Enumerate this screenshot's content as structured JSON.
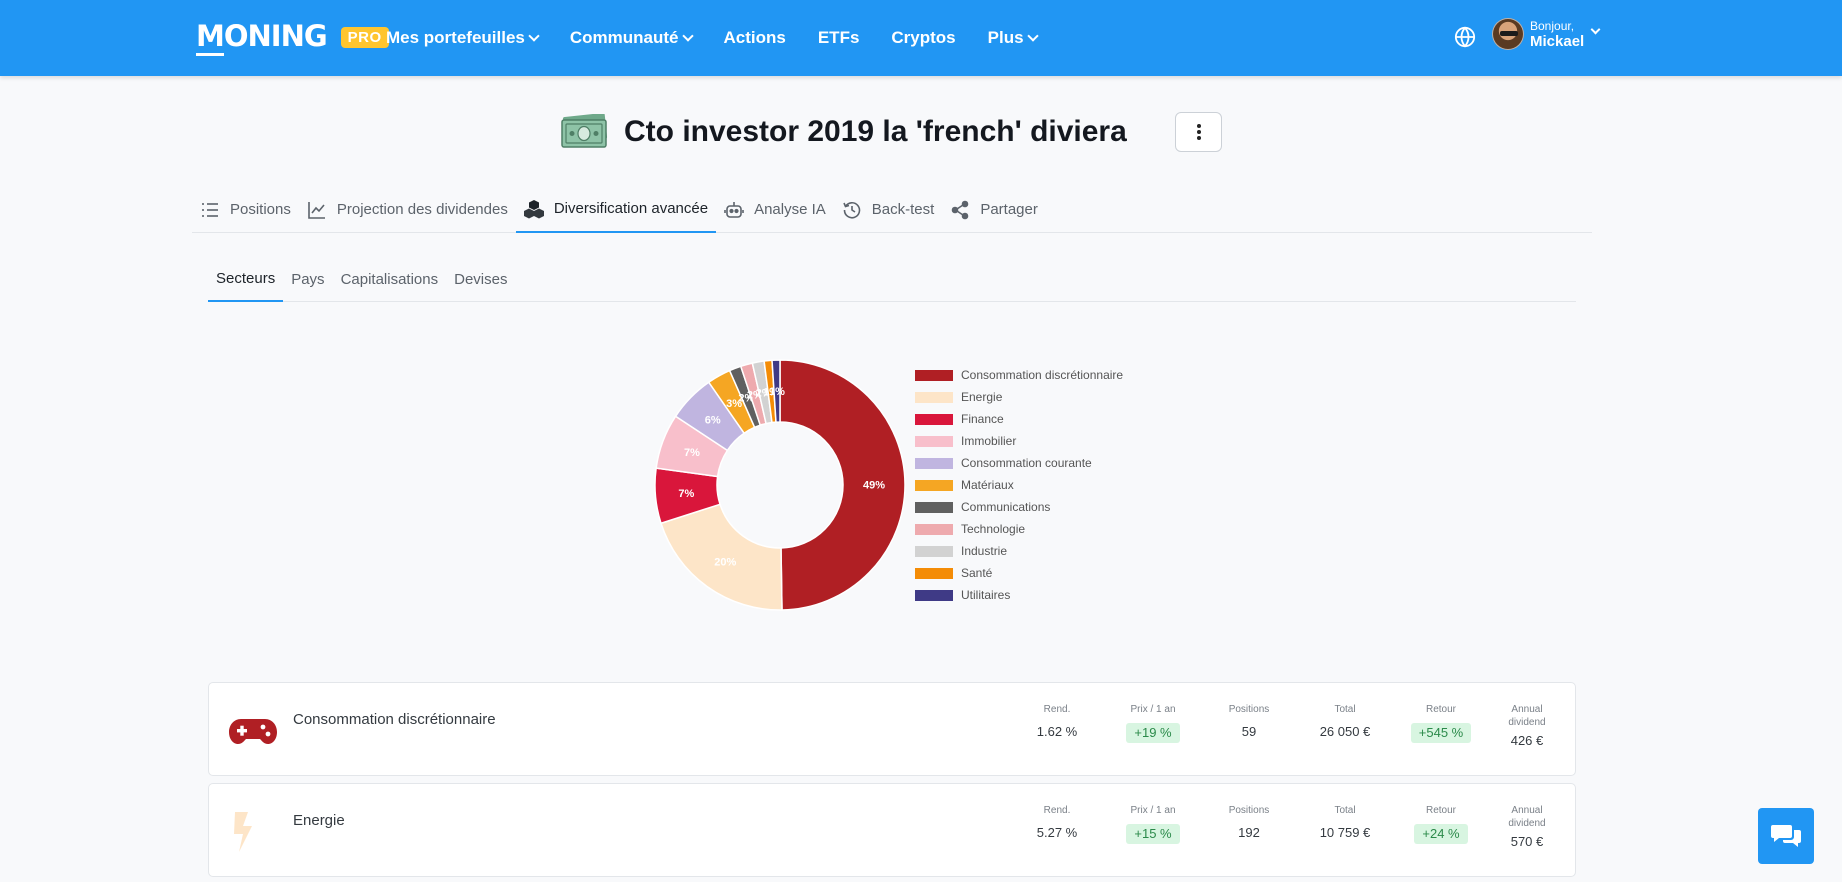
{
  "navbar": {
    "logo": "MONING",
    "pro_badge": "PRO",
    "items": [
      {
        "label": "Mes portefeuilles",
        "dropdown": true
      },
      {
        "label": "Communauté",
        "dropdown": true
      },
      {
        "label": "Actions",
        "dropdown": false
      },
      {
        "label": "ETFs",
        "dropdown": false
      },
      {
        "label": "Cryptos",
        "dropdown": false
      },
      {
        "label": "Plus",
        "dropdown": true
      }
    ],
    "user": {
      "greeting": "Bonjour,",
      "name": "Mickael"
    }
  },
  "portfolio": {
    "title": "Cto investor 2019 la 'french' diviera"
  },
  "tabs": [
    {
      "label": "Positions",
      "icon": "list-icon",
      "active": false
    },
    {
      "label": "Projection des dividendes",
      "icon": "line-chart-icon",
      "active": false
    },
    {
      "label": "Diversification avancée",
      "icon": "cubes-icon",
      "active": true
    },
    {
      "label": "Analyse IA",
      "icon": "robot-icon",
      "active": false
    },
    {
      "label": "Back-test",
      "icon": "history-icon",
      "active": false
    },
    {
      "label": "Partager",
      "icon": "share-icon",
      "active": false
    }
  ],
  "subtabs": [
    {
      "label": "Secteurs",
      "active": true
    },
    {
      "label": "Pays",
      "active": false
    },
    {
      "label": "Capitalisations",
      "active": false
    },
    {
      "label": "Devises",
      "active": false
    }
  ],
  "chart_data": {
    "type": "pie",
    "donut": true,
    "legend_position": "right",
    "categories": [
      "Consommation discrétionnaire",
      "Energie",
      "Finance",
      "Immobilier",
      "Consommation courante",
      "Matériaux",
      "Communications",
      "Technologie",
      "Industrie",
      "Santé",
      "Utilitaires"
    ],
    "values": [
      49,
      20,
      7,
      7,
      6,
      3,
      1.5,
      1.5,
      1.5,
      1,
      1
    ],
    "data_labels": [
      "49%",
      "20%",
      "7%",
      "7%",
      "6%",
      "3%",
      "2%",
      "2%",
      "2%",
      "1%",
      "1%"
    ],
    "colors": [
      "#b01f24",
      "#fde5c8",
      "#d9163b",
      "#f8bfcb",
      "#c0b5e0",
      "#f5a623",
      "#606060",
      "#eeaaae",
      "#d2d2d2",
      "#f48c06",
      "#3f3a86"
    ]
  },
  "sectors": [
    {
      "name": "Consommation discrétionnaire",
      "icon": "gamepad-icon",
      "rend_label": "Rend.",
      "rend": "1.62 %",
      "prix_label": "Prix / 1 an",
      "prix": "+19 %",
      "positions_label": "Positions",
      "positions": "59",
      "total_label": "Total",
      "total": "26 050 €",
      "retour_label": "Retour",
      "retour": "+545 %",
      "dividend_label": "Annual dividend",
      "dividend": "426 €"
    },
    {
      "name": "Energie",
      "icon": "bolt-icon",
      "rend_label": "Rend.",
      "rend": "5.27 %",
      "prix_label": "Prix / 1 an",
      "prix": "+15 %",
      "positions_label": "Positions",
      "positions": "192",
      "total_label": "Total",
      "total": "10 759 €",
      "retour_label": "Retour",
      "retour": "+24 %",
      "dividend_label": "Annual dividend",
      "dividend": "570 €"
    }
  ],
  "colors": {
    "primary": "#2196f3",
    "pro": "#ffc52e",
    "positive_bg": "#d8f5e1",
    "positive_text": "#2b8a4a"
  }
}
